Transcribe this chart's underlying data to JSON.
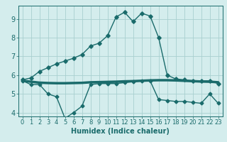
{
  "line1_x": [
    0,
    1,
    2,
    3,
    4,
    5,
    6,
    7,
    8,
    9,
    10,
    11,
    12,
    13,
    14,
    15,
    16,
    17,
    18,
    19,
    20,
    21,
    22,
    23
  ],
  "line1_y": [
    5.75,
    5.85,
    6.2,
    6.4,
    6.6,
    6.75,
    6.9,
    7.1,
    7.55,
    7.7,
    8.1,
    9.1,
    9.35,
    8.85,
    9.3,
    9.15,
    8.0,
    6.0,
    5.8,
    5.75,
    5.7,
    5.7,
    5.7,
    5.55
  ],
  "line2_x": [
    0,
    1,
    2,
    3,
    4,
    5,
    6,
    7,
    8,
    9,
    10,
    11,
    12,
    13,
    14,
    15,
    16,
    17,
    18,
    19,
    20,
    21,
    22,
    23
  ],
  "line2_y": [
    5.7,
    5.5,
    5.5,
    5.0,
    4.85,
    3.7,
    4.0,
    4.35,
    5.5,
    5.55,
    5.55,
    5.55,
    5.6,
    5.65,
    5.7,
    5.7,
    4.7,
    4.65,
    4.6,
    4.6,
    4.55,
    4.5,
    5.0,
    4.5
  ],
  "line3_x": [
    0,
    1,
    2,
    3,
    4,
    5,
    6,
    7,
    8,
    9,
    10,
    11,
    12,
    13,
    14,
    15,
    16,
    17,
    18,
    19,
    20,
    21,
    22,
    23
  ],
  "line3_y": [
    5.7,
    5.65,
    5.6,
    5.58,
    5.57,
    5.57,
    5.58,
    5.59,
    5.62,
    5.63,
    5.64,
    5.65,
    5.67,
    5.68,
    5.7,
    5.72,
    5.73,
    5.73,
    5.72,
    5.7,
    5.68,
    5.66,
    5.65,
    5.62
  ],
  "color": "#1a6b6b",
  "bg_color": "#d4eded",
  "grid_color": "#a8d0d0",
  "xlabel": "Humidex (Indice chaleur)",
  "xlim": [
    -0.5,
    23.5
  ],
  "ylim": [
    3.8,
    9.7
  ],
  "yticks": [
    4,
    5,
    6,
    7,
    8,
    9
  ],
  "xticks": [
    0,
    1,
    2,
    3,
    4,
    5,
    6,
    7,
    8,
    9,
    10,
    11,
    12,
    13,
    14,
    15,
    16,
    17,
    18,
    19,
    20,
    21,
    22,
    23
  ]
}
